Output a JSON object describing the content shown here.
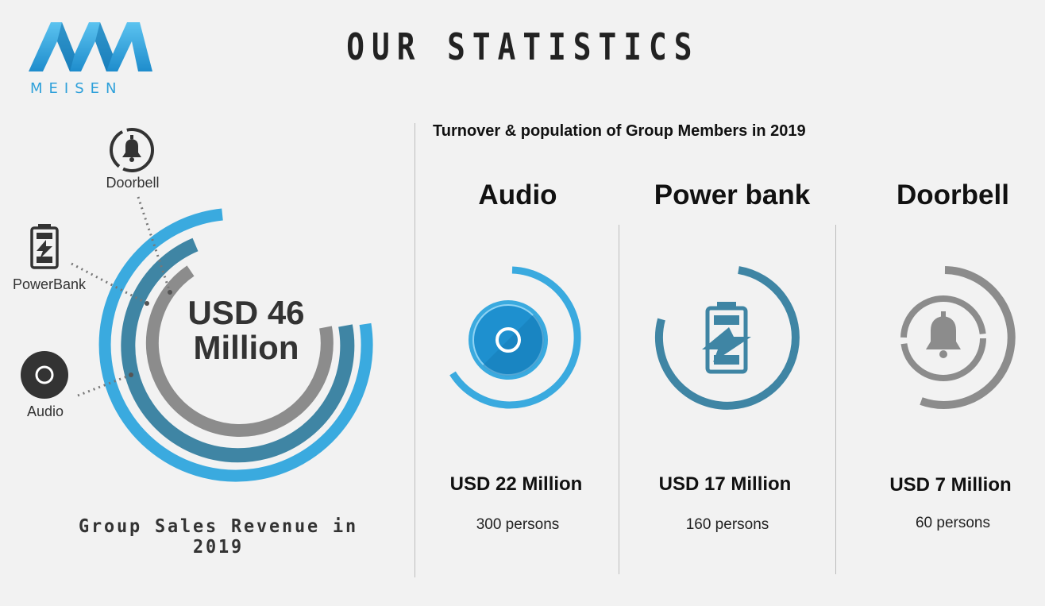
{
  "logo": {
    "text": "MEISEN",
    "color": "#2ea0da"
  },
  "page_title": "OUR STATISTICS",
  "left_panel": {
    "total_value": "USD 46 Million",
    "total_line1": "USD 46",
    "total_line2": "Million",
    "footer": "Group Sales Revenue in 2019",
    "categories": [
      {
        "label": "Doorbell",
        "icon": "bell-icon"
      },
      {
        "label": "PowerBank",
        "icon": "battery-charging-icon"
      },
      {
        "label": "Audio",
        "icon": "audio-disc-icon"
      }
    ]
  },
  "right_panel": {
    "title": "Turnover & population of Group Members in 2019",
    "columns": [
      {
        "name": "Audio",
        "value": "USD 22 Million",
        "count": "300 persons",
        "icon": "audio-disc-icon",
        "color": "#3aaadf"
      },
      {
        "name": "Power bank",
        "value": "USD 17 Million",
        "count": "160 persons",
        "icon": "battery-charging-icon",
        "color": "#3f85a4"
      },
      {
        "name": "Doorbell",
        "value": "USD 7 Million",
        "count": "60 persons",
        "icon": "bell-icon",
        "color": "#8c8c8c"
      }
    ]
  },
  "colors": {
    "light_blue": "#3aaadf",
    "dark_blue": "#3f85a4",
    "gray": "#8c8c8c",
    "dark": "#333333"
  }
}
